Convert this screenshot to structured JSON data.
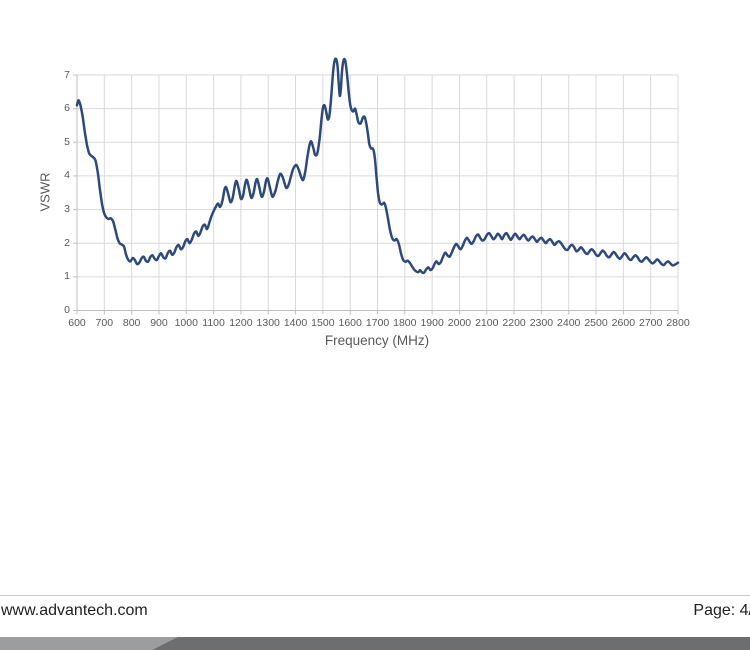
{
  "chart": {
    "y_axis_title": "VSWR",
    "x_axis_title": "Frequency (MHz)"
  },
  "chart_data": {
    "type": "line",
    "title": "",
    "xlabel": "Frequency (MHz)",
    "ylabel": "VSWR",
    "xlim": [
      600,
      2800
    ],
    "ylim": [
      0,
      7
    ],
    "x_ticks": [
      600,
      700,
      800,
      900,
      1000,
      1100,
      1200,
      1300,
      1400,
      1500,
      1600,
      1700,
      1800,
      1900,
      2000,
      2100,
      2200,
      2300,
      2400,
      2500,
      2600,
      2700,
      2800
    ],
    "y_ticks": [
      0,
      1,
      2,
      3,
      4,
      5,
      6,
      7
    ],
    "grid": true,
    "legend_position": "none",
    "line_color": "#2e4a7b",
    "gridline_color": "#d9d9d9",
    "axis_color": "#bfbfbf",
    "tick_label_color": "#595959",
    "note": "Peaks near 1540-1590 MHz exceed the 7.0 axis maximum and are drawn clipped at about 7.5",
    "series": [
      {
        "name": "VSWR",
        "points": [
          [
            600,
            6.1
          ],
          [
            605,
            6.25
          ],
          [
            612,
            6.12
          ],
          [
            620,
            5.8
          ],
          [
            628,
            5.35
          ],
          [
            636,
            4.95
          ],
          [
            644,
            4.68
          ],
          [
            652,
            4.6
          ],
          [
            660,
            4.55
          ],
          [
            668,
            4.45
          ],
          [
            676,
            4.1
          ],
          [
            684,
            3.6
          ],
          [
            692,
            3.15
          ],
          [
            700,
            2.88
          ],
          [
            708,
            2.76
          ],
          [
            716,
            2.72
          ],
          [
            724,
            2.74
          ],
          [
            732,
            2.65
          ],
          [
            740,
            2.42
          ],
          [
            748,
            2.15
          ],
          [
            756,
            2.0
          ],
          [
            764,
            1.96
          ],
          [
            772,
            1.9
          ],
          [
            780,
            1.65
          ],
          [
            788,
            1.5
          ],
          [
            796,
            1.46
          ],
          [
            804,
            1.56
          ],
          [
            812,
            1.5
          ],
          [
            820,
            1.38
          ],
          [
            828,
            1.42
          ],
          [
            836,
            1.55
          ],
          [
            844,
            1.6
          ],
          [
            852,
            1.48
          ],
          [
            860,
            1.45
          ],
          [
            868,
            1.58
          ],
          [
            876,
            1.64
          ],
          [
            884,
            1.54
          ],
          [
            892,
            1.5
          ],
          [
            900,
            1.62
          ],
          [
            908,
            1.7
          ],
          [
            916,
            1.58
          ],
          [
            924,
            1.55
          ],
          [
            932,
            1.7
          ],
          [
            940,
            1.78
          ],
          [
            948,
            1.66
          ],
          [
            956,
            1.72
          ],
          [
            964,
            1.88
          ],
          [
            972,
            1.95
          ],
          [
            980,
            1.82
          ],
          [
            988,
            1.88
          ],
          [
            996,
            2.05
          ],
          [
            1004,
            2.12
          ],
          [
            1012,
            2.0
          ],
          [
            1020,
            2.1
          ],
          [
            1028,
            2.28
          ],
          [
            1036,
            2.35
          ],
          [
            1044,
            2.22
          ],
          [
            1052,
            2.32
          ],
          [
            1060,
            2.5
          ],
          [
            1068,
            2.55
          ],
          [
            1076,
            2.42
          ],
          [
            1084,
            2.6
          ],
          [
            1092,
            2.8
          ],
          [
            1100,
            2.95
          ],
          [
            1108,
            3.08
          ],
          [
            1116,
            3.18
          ],
          [
            1124,
            3.08
          ],
          [
            1132,
            3.25
          ],
          [
            1140,
            3.6
          ],
          [
            1146,
            3.66
          ],
          [
            1154,
            3.45
          ],
          [
            1162,
            3.22
          ],
          [
            1170,
            3.35
          ],
          [
            1178,
            3.72
          ],
          [
            1184,
            3.85
          ],
          [
            1192,
            3.62
          ],
          [
            1200,
            3.32
          ],
          [
            1208,
            3.42
          ],
          [
            1216,
            3.78
          ],
          [
            1222,
            3.88
          ],
          [
            1230,
            3.62
          ],
          [
            1238,
            3.35
          ],
          [
            1246,
            3.48
          ],
          [
            1254,
            3.82
          ],
          [
            1260,
            3.9
          ],
          [
            1268,
            3.64
          ],
          [
            1276,
            3.38
          ],
          [
            1284,
            3.52
          ],
          [
            1292,
            3.85
          ],
          [
            1298,
            3.92
          ],
          [
            1306,
            3.66
          ],
          [
            1314,
            3.4
          ],
          [
            1320,
            3.42
          ],
          [
            1328,
            3.6
          ],
          [
            1336,
            3.88
          ],
          [
            1344,
            4.06
          ],
          [
            1352,
            3.98
          ],
          [
            1360,
            3.78
          ],
          [
            1366,
            3.64
          ],
          [
            1374,
            3.72
          ],
          [
            1382,
            3.95
          ],
          [
            1390,
            4.18
          ],
          [
            1398,
            4.3
          ],
          [
            1404,
            4.32
          ],
          [
            1412,
            4.18
          ],
          [
            1420,
            3.98
          ],
          [
            1428,
            3.88
          ],
          [
            1436,
            4.15
          ],
          [
            1444,
            4.6
          ],
          [
            1452,
            4.95
          ],
          [
            1458,
            5.02
          ],
          [
            1466,
            4.8
          ],
          [
            1472,
            4.62
          ],
          [
            1480,
            4.68
          ],
          [
            1488,
            5.1
          ],
          [
            1494,
            5.6
          ],
          [
            1500,
            6.02
          ],
          [
            1506,
            6.1
          ],
          [
            1512,
            5.92
          ],
          [
            1518,
            5.68
          ],
          [
            1524,
            5.8
          ],
          [
            1530,
            6.3
          ],
          [
            1536,
            6.95
          ],
          [
            1542,
            7.38
          ],
          [
            1548,
            7.48
          ],
          [
            1554,
            7.25
          ],
          [
            1558,
            6.75
          ],
          [
            1562,
            6.38
          ],
          [
            1566,
            6.6
          ],
          [
            1570,
            7.1
          ],
          [
            1576,
            7.44
          ],
          [
            1582,
            7.42
          ],
          [
            1588,
            7.05
          ],
          [
            1594,
            6.55
          ],
          [
            1600,
            6.12
          ],
          [
            1606,
            5.95
          ],
          [
            1612,
            5.92
          ],
          [
            1618,
            6.0
          ],
          [
            1624,
            5.82
          ],
          [
            1630,
            5.6
          ],
          [
            1638,
            5.56
          ],
          [
            1646,
            5.72
          ],
          [
            1652,
            5.76
          ],
          [
            1658,
            5.6
          ],
          [
            1664,
            5.3
          ],
          [
            1670,
            4.95
          ],
          [
            1676,
            4.82
          ],
          [
            1684,
            4.8
          ],
          [
            1690,
            4.55
          ],
          [
            1696,
            4.0
          ],
          [
            1702,
            3.5
          ],
          [
            1708,
            3.22
          ],
          [
            1716,
            3.15
          ],
          [
            1724,
            3.2
          ],
          [
            1730,
            3.08
          ],
          [
            1738,
            2.75
          ],
          [
            1746,
            2.38
          ],
          [
            1754,
            2.15
          ],
          [
            1762,
            2.08
          ],
          [
            1770,
            2.12
          ],
          [
            1778,
            1.98
          ],
          [
            1786,
            1.7
          ],
          [
            1794,
            1.5
          ],
          [
            1802,
            1.45
          ],
          [
            1810,
            1.48
          ],
          [
            1818,
            1.42
          ],
          [
            1826,
            1.32
          ],
          [
            1834,
            1.22
          ],
          [
            1842,
            1.16
          ],
          [
            1850,
            1.14
          ],
          [
            1856,
            1.2
          ],
          [
            1862,
            1.14
          ],
          [
            1870,
            1.12
          ],
          [
            1878,
            1.22
          ],
          [
            1886,
            1.28
          ],
          [
            1894,
            1.2
          ],
          [
            1902,
            1.26
          ],
          [
            1910,
            1.4
          ],
          [
            1916,
            1.46
          ],
          [
            1924,
            1.38
          ],
          [
            1932,
            1.44
          ],
          [
            1940,
            1.6
          ],
          [
            1948,
            1.72
          ],
          [
            1956,
            1.64
          ],
          [
            1964,
            1.6
          ],
          [
            1972,
            1.72
          ],
          [
            1980,
            1.88
          ],
          [
            1988,
            1.98
          ],
          [
            1996,
            1.9
          ],
          [
            2004,
            1.82
          ],
          [
            2012,
            1.92
          ],
          [
            2020,
            2.08
          ],
          [
            2028,
            2.16
          ],
          [
            2036,
            2.06
          ],
          [
            2044,
            1.98
          ],
          [
            2052,
            2.06
          ],
          [
            2060,
            2.2
          ],
          [
            2068,
            2.26
          ],
          [
            2076,
            2.16
          ],
          [
            2084,
            2.08
          ],
          [
            2092,
            2.12
          ],
          [
            2100,
            2.24
          ],
          [
            2108,
            2.3
          ],
          [
            2116,
            2.22
          ],
          [
            2124,
            2.12
          ],
          [
            2132,
            2.18
          ],
          [
            2140,
            2.28
          ],
          [
            2148,
            2.22
          ],
          [
            2156,
            2.12
          ],
          [
            2164,
            2.24
          ],
          [
            2172,
            2.3
          ],
          [
            2180,
            2.2
          ],
          [
            2188,
            2.1
          ],
          [
            2196,
            2.2
          ],
          [
            2204,
            2.28
          ],
          [
            2212,
            2.2
          ],
          [
            2220,
            2.12
          ],
          [
            2228,
            2.2
          ],
          [
            2236,
            2.25
          ],
          [
            2244,
            2.16
          ],
          [
            2252,
            2.08
          ],
          [
            2260,
            2.15
          ],
          [
            2268,
            2.2
          ],
          [
            2276,
            2.12
          ],
          [
            2284,
            2.04
          ],
          [
            2292,
            2.12
          ],
          [
            2300,
            2.16
          ],
          [
            2308,
            2.08
          ],
          [
            2316,
            2.0
          ],
          [
            2324,
            2.08
          ],
          [
            2332,
            2.12
          ],
          [
            2340,
            2.04
          ],
          [
            2348,
            1.95
          ],
          [
            2356,
            2.02
          ],
          [
            2364,
            2.06
          ],
          [
            2372,
            2.0
          ],
          [
            2380,
            1.9
          ],
          [
            2388,
            1.82
          ],
          [
            2396,
            1.8
          ],
          [
            2404,
            1.9
          ],
          [
            2412,
            1.95
          ],
          [
            2420,
            1.88
          ],
          [
            2428,
            1.76
          ],
          [
            2436,
            1.8
          ],
          [
            2444,
            1.88
          ],
          [
            2452,
            1.82
          ],
          [
            2460,
            1.72
          ],
          [
            2468,
            1.68
          ],
          [
            2476,
            1.76
          ],
          [
            2484,
            1.82
          ],
          [
            2492,
            1.76
          ],
          [
            2500,
            1.66
          ],
          [
            2508,
            1.62
          ],
          [
            2516,
            1.7
          ],
          [
            2524,
            1.78
          ],
          [
            2532,
            1.72
          ],
          [
            2540,
            1.62
          ],
          [
            2548,
            1.58
          ],
          [
            2556,
            1.66
          ],
          [
            2564,
            1.74
          ],
          [
            2572,
            1.68
          ],
          [
            2580,
            1.58
          ],
          [
            2588,
            1.54
          ],
          [
            2596,
            1.62
          ],
          [
            2604,
            1.7
          ],
          [
            2612,
            1.64
          ],
          [
            2620,
            1.54
          ],
          [
            2628,
            1.5
          ],
          [
            2636,
            1.58
          ],
          [
            2644,
            1.64
          ],
          [
            2652,
            1.58
          ],
          [
            2660,
            1.48
          ],
          [
            2668,
            1.45
          ],
          [
            2676,
            1.52
          ],
          [
            2684,
            1.58
          ],
          [
            2692,
            1.52
          ],
          [
            2700,
            1.44
          ],
          [
            2708,
            1.4
          ],
          [
            2716,
            1.46
          ],
          [
            2724,
            1.52
          ],
          [
            2732,
            1.46
          ],
          [
            2740,
            1.38
          ],
          [
            2748,
            1.35
          ],
          [
            2756,
            1.42
          ],
          [
            2764,
            1.46
          ],
          [
            2772,
            1.4
          ],
          [
            2780,
            1.34
          ],
          [
            2788,
            1.36
          ],
          [
            2800,
            1.42
          ]
        ]
      }
    ]
  },
  "footer": {
    "website": "www.advantech.com",
    "page_label": "Page: 4/",
    "divider_color": "#c9c9c9",
    "bar_light_color": "#9c9d9e",
    "bar_dark_color": "#6d6e70"
  }
}
